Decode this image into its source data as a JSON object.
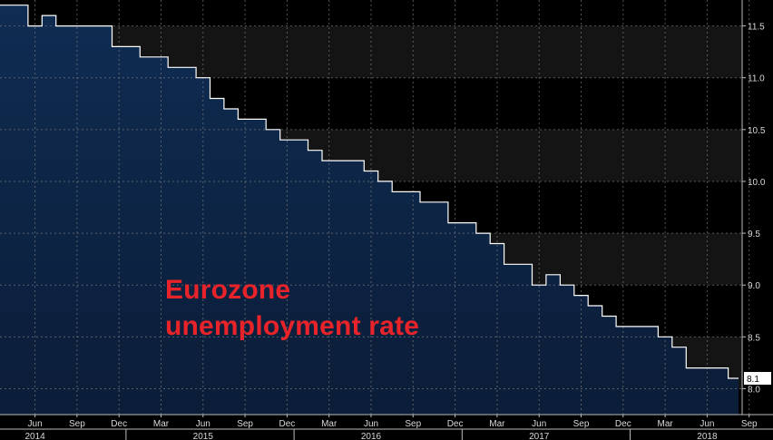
{
  "chart_data": {
    "type": "area",
    "title": "",
    "xlabel": "",
    "ylabel": "",
    "annotation": [
      "Eurozone",
      "unemployment rate"
    ],
    "x_range": [
      "2014-04",
      "2018-09"
    ],
    "ylim": [
      7.75,
      11.75
    ],
    "y_ticks": [
      "11.5",
      "11.0",
      "10.5",
      "10.0",
      "9.5",
      "9.0",
      "8.5",
      "8.0"
    ],
    "x_ticks": [
      {
        "month": "2014-06",
        "label": "Jun"
      },
      {
        "month": "2014-09",
        "label": "Sep"
      },
      {
        "month": "2014-12",
        "label": "Dec"
      },
      {
        "month": "2015-03",
        "label": "Mar"
      },
      {
        "month": "2015-06",
        "label": "Jun"
      },
      {
        "month": "2015-09",
        "label": "Sep"
      },
      {
        "month": "2015-12",
        "label": "Dec"
      },
      {
        "month": "2016-03",
        "label": "Mar"
      },
      {
        "month": "2016-06",
        "label": "Jun"
      },
      {
        "month": "2016-09",
        "label": "Sep"
      },
      {
        "month": "2016-12",
        "label": "Dec"
      },
      {
        "month": "2017-03",
        "label": "Mar"
      },
      {
        "month": "2017-06",
        "label": "Jun"
      },
      {
        "month": "2017-09",
        "label": "Sep"
      },
      {
        "month": "2017-12",
        "label": "Dec"
      },
      {
        "month": "2018-03",
        "label": "Mar"
      },
      {
        "month": "2018-06",
        "label": "Jun"
      },
      {
        "month": "2018-09",
        "label": "Sep"
      }
    ],
    "years": [
      {
        "month": "2014-06",
        "label": "2014"
      },
      {
        "month": "2015-06",
        "label": "2015"
      },
      {
        "month": "2016-06",
        "label": "2016"
      },
      {
        "month": "2017-06",
        "label": "2017"
      },
      {
        "month": "2018-06",
        "label": "2018"
      }
    ],
    "series": [
      {
        "x": [
          "2014-04",
          "2014-05",
          "2014-06",
          "2014-07",
          "2014-08",
          "2014-09",
          "2014-10",
          "2014-11",
          "2014-12",
          "2015-01",
          "2015-02",
          "2015-03",
          "2015-04",
          "2015-05",
          "2015-06",
          "2015-07",
          "2015-08",
          "2015-09",
          "2015-10",
          "2015-11",
          "2015-12",
          "2016-01",
          "2016-02",
          "2016-03",
          "2016-04",
          "2016-05",
          "2016-06",
          "2016-07",
          "2016-08",
          "2016-09",
          "2016-10",
          "2016-11",
          "2016-12",
          "2017-01",
          "2017-02",
          "2017-03",
          "2017-04",
          "2017-05",
          "2017-06",
          "2017-07",
          "2017-08",
          "2017-09",
          "2017-10",
          "2017-11",
          "2017-12",
          "2018-01",
          "2018-02",
          "2018-03",
          "2018-04",
          "2018-05",
          "2018-06",
          "2018-07",
          "2018-08"
        ],
        "values": [
          11.7,
          11.7,
          11.5,
          11.6,
          11.5,
          11.5,
          11.5,
          11.5,
          11.3,
          11.3,
          11.2,
          11.2,
          11.1,
          11.1,
          11.0,
          10.8,
          10.7,
          10.6,
          10.6,
          10.5,
          10.4,
          10.4,
          10.3,
          10.2,
          10.2,
          10.2,
          10.1,
          10.0,
          9.9,
          9.9,
          9.8,
          9.8,
          9.6,
          9.6,
          9.5,
          9.4,
          9.2,
          9.2,
          9.0,
          9.1,
          9.0,
          8.9,
          8.8,
          8.7,
          8.6,
          8.6,
          8.6,
          8.5,
          8.4,
          8.2,
          8.2,
          8.2,
          8.1
        ]
      }
    ],
    "last_value_label": "8.1",
    "colors": {
      "background": "#000000",
      "shaded_band": "#141414",
      "area_top": "#0f2c52",
      "area_bottom": "#0b1d38",
      "line": "#ffffff",
      "grid": "#7a7a7a",
      "annotation": "#e8242a"
    }
  }
}
